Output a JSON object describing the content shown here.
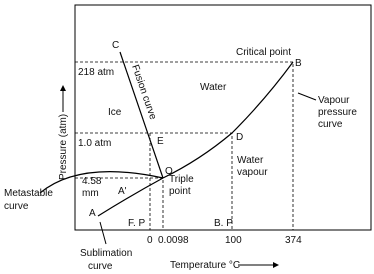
{
  "diagram": {
    "points": {
      "A": "A",
      "A_prime": "A'",
      "B": "B",
      "C": "C",
      "D": "D",
      "E": "E",
      "O": "O"
    },
    "y_labels": {
      "p218": "218 atm",
      "p1": "1.0 atm",
      "p458": [
        "4.58",
        "mm"
      ]
    },
    "x_labels": {
      "t0": "0",
      "t00098": "0.0098",
      "t100": "100",
      "t374": "374",
      "fp": "F. P",
      "bp": "B. P"
    },
    "regions": {
      "water": "Water",
      "ice": "Ice",
      "vapour": [
        "Water",
        "vapour"
      ]
    },
    "annotations": {
      "critical_point": "Critical point",
      "fusion_curve": "Fusion curve",
      "vapour_pressure_curve": [
        "Vapour",
        "pressure",
        "curve"
      ],
      "triple_point": [
        "Triple",
        "point"
      ],
      "metastable_curve": [
        "Metastable",
        "curve"
      ],
      "sublimation_curve": [
        "Sublimation",
        "curve"
      ]
    },
    "axes": {
      "x_title": "Temperature °C",
      "y_title": "Pressure (atm)"
    }
  }
}
